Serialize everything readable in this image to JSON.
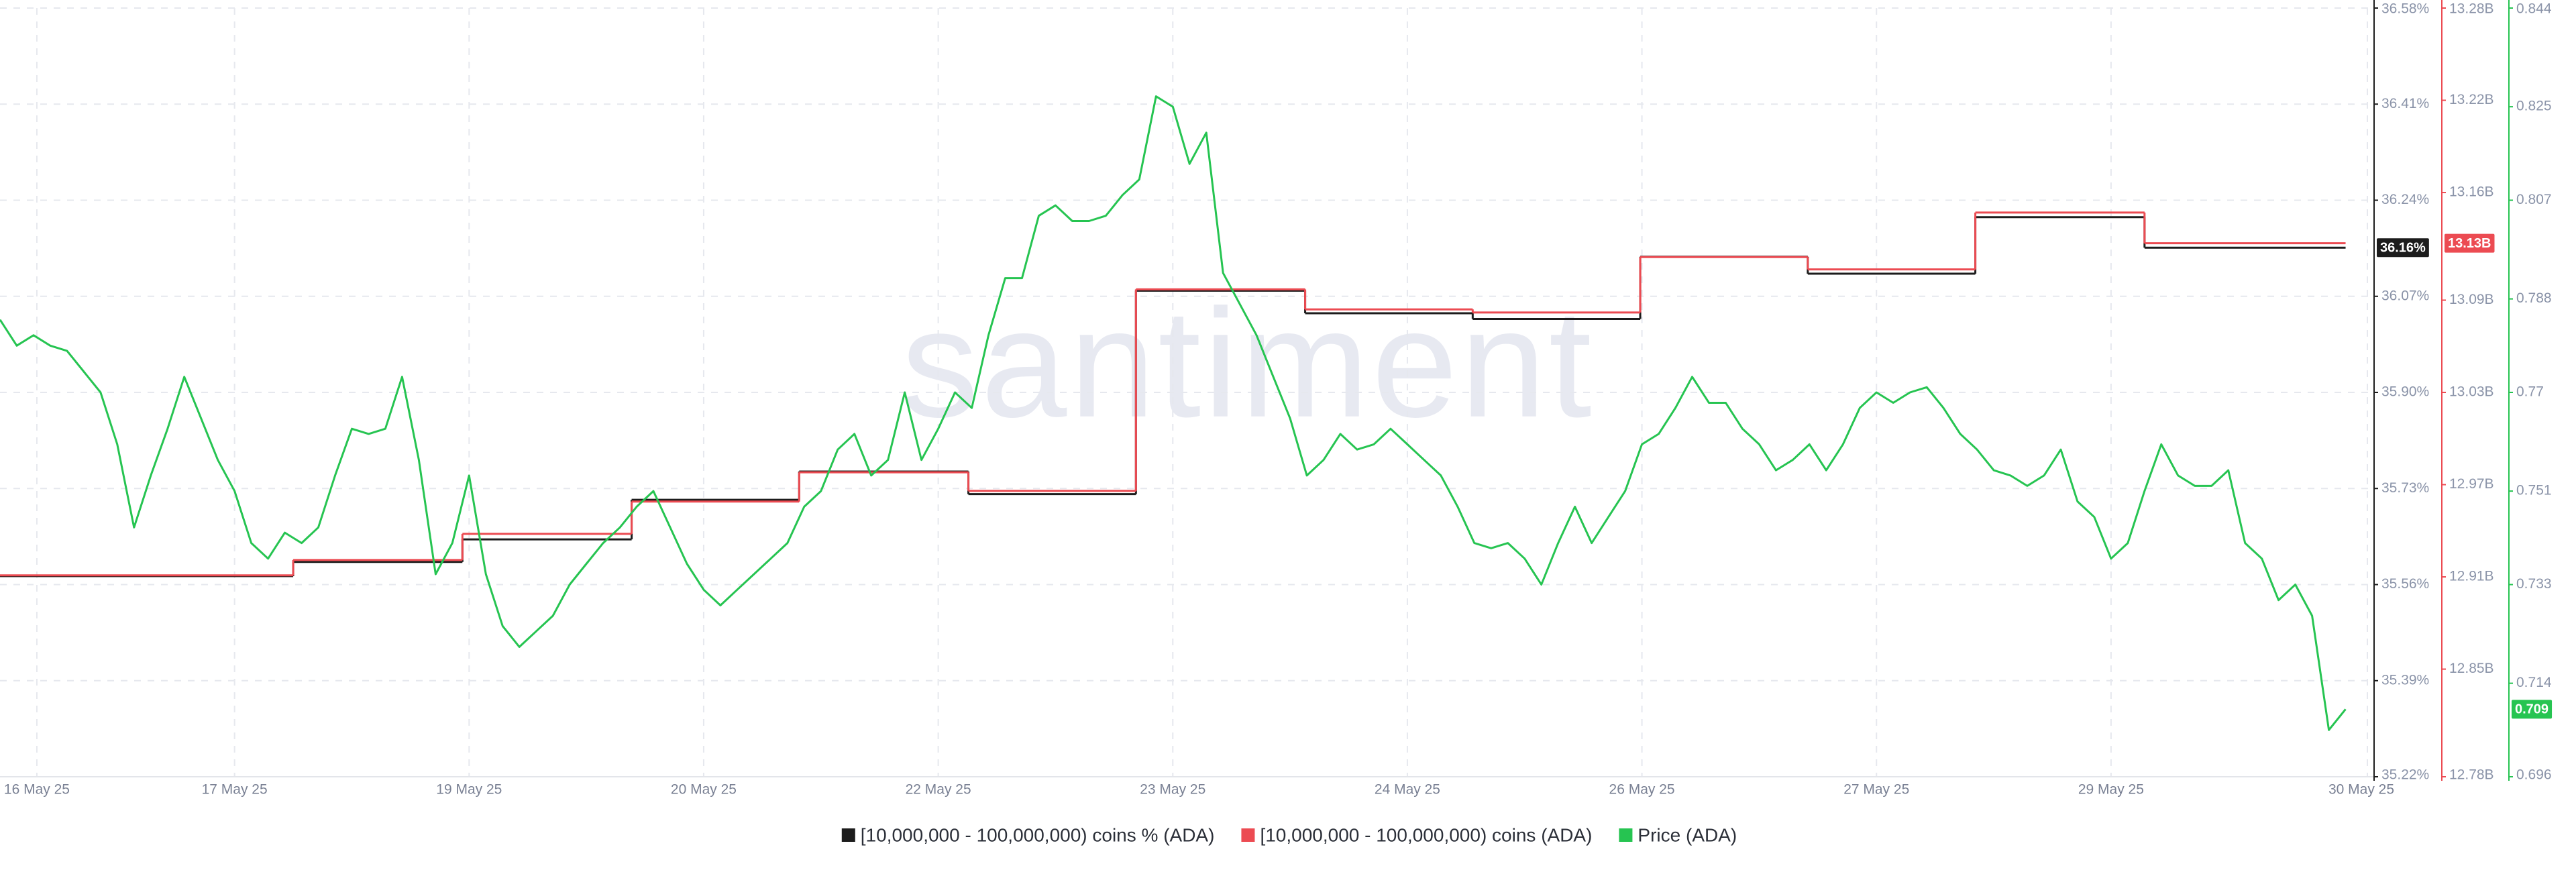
{
  "chart_data": {
    "type": "line",
    "watermark": "santiment",
    "xlim": [
      0,
      141.7
    ],
    "xticks": [
      {
        "value": 2.2,
        "label": "16 May 25"
      },
      {
        "value": 14,
        "label": "17 May 25"
      },
      {
        "value": 28,
        "label": "19 May 25"
      },
      {
        "value": 42,
        "label": "20 May 25"
      },
      {
        "value": 56,
        "label": "22 May 25"
      },
      {
        "value": 70,
        "label": "23 May 25"
      },
      {
        "value": 84,
        "label": "24 May 25"
      },
      {
        "value": 98,
        "label": "26 May 25"
      },
      {
        "value": 112,
        "label": "27 May 25"
      },
      {
        "value": 126,
        "label": "29 May 25"
      },
      {
        "value": 141.3,
        "label": "30 May 25"
      }
    ],
    "ylim": [
      35.22,
      36.58
    ],
    "yticks": [
      {
        "value": 35.22,
        "label": "35.22%"
      },
      {
        "value": 35.39,
        "label": "35.39%"
      },
      {
        "value": 35.56,
        "label": "35.56%"
      },
      {
        "value": 35.73,
        "label": "35.73%"
      },
      {
        "value": 35.9,
        "label": "35.90%"
      },
      {
        "value": 36.07,
        "label": "36.07%"
      },
      {
        "value": 36.24,
        "label": "36.24%"
      },
      {
        "value": 36.41,
        "label": "36.41%"
      },
      {
        "value": 36.58,
        "label": "36.58%"
      }
    ],
    "y2lim": [
      12.78,
      13.28
    ],
    "y2ticks": [
      {
        "value": 12.78,
        "label": "12.78B"
      },
      {
        "value": 12.85,
        "label": "12.85B"
      },
      {
        "value": 12.91,
        "label": "12.91B"
      },
      {
        "value": 12.97,
        "label": "12.97B"
      },
      {
        "value": 13.03,
        "label": "13.03B"
      },
      {
        "value": 13.09,
        "label": "13.09B"
      },
      {
        "value": 13.16,
        "label": "13.16B"
      },
      {
        "value": 13.22,
        "label": "13.22B"
      },
      {
        "value": 13.28,
        "label": "13.28B"
      }
    ],
    "y3lim": [
      0.696,
      0.844
    ],
    "y3ticks": [
      0.696,
      0.714,
      0.733,
      0.751,
      0.77,
      0.788,
      0.807,
      0.825,
      0.844
    ],
    "grid": true,
    "legend": "bottom",
    "series": [
      {
        "name": "[10,000,000 - 100,000,000) coins % (ADA)",
        "color": "#1c1c1c",
        "axis": "y",
        "step": true,
        "x": [
          0,
          17.5,
          27.6,
          37.7,
          47.7,
          57.8,
          67.8,
          77.9,
          87.9,
          97.9,
          107.9,
          117.9,
          128
        ],
        "values": [
          35.575,
          35.6,
          35.64,
          35.71,
          35.76,
          35.72,
          36.08,
          36.04,
          36.03,
          36.14,
          36.11,
          36.21,
          36.156
        ],
        "current_label": "36.16%"
      },
      {
        "name": "[10,000,000 - 100,000,000) coins (ADA)",
        "color": "#ec4b52",
        "axis": "y2",
        "step": true,
        "x": [
          0,
          17.5,
          27.6,
          37.7,
          47.7,
          57.8,
          67.8,
          77.9,
          87.9,
          97.9,
          107.9,
          117.9,
          128
        ],
        "values": [
          12.911,
          12.921,
          12.938,
          12.959,
          12.978,
          12.966,
          13.097,
          13.084,
          13.082,
          13.118,
          13.11,
          13.147,
          13.127
        ],
        "current_label": "13.13B"
      },
      {
        "name": "Price (ADA)",
        "color": "#26c451",
        "axis": "y3",
        "values": [
          0.784,
          0.779,
          0.781,
          0.779,
          0.778,
          0.774,
          0.77,
          0.76,
          0.744,
          0.754,
          0.763,
          0.773,
          0.765,
          0.757,
          0.751,
          0.741,
          0.738,
          0.743,
          0.741,
          0.744,
          0.754,
          0.763,
          0.762,
          0.763,
          0.773,
          0.757,
          0.735,
          0.741,
          0.754,
          0.735,
          0.725,
          0.721,
          0.724,
          0.727,
          0.733,
          0.737,
          0.741,
          0.744,
          0.748,
          0.751,
          0.744,
          0.737,
          0.732,
          0.729,
          0.732,
          0.735,
          0.738,
          0.741,
          0.748,
          0.751,
          0.759,
          0.762,
          0.754,
          0.757,
          0.77,
          0.757,
          0.763,
          0.77,
          0.767,
          0.781,
          0.792,
          0.792,
          0.804,
          0.806,
          0.803,
          0.803,
          0.804,
          0.808,
          0.811,
          0.827,
          0.825,
          0.814,
          0.82,
          0.793,
          0.787,
          0.781,
          0.773,
          0.765,
          0.754,
          0.757,
          0.762,
          0.759,
          0.76,
          0.763,
          0.76,
          0.757,
          0.754,
          0.748,
          0.741,
          0.74,
          0.741,
          0.738,
          0.733,
          0.741,
          0.748,
          0.741,
          0.746,
          0.751,
          0.76,
          0.762,
          0.767,
          0.773,
          0.768,
          0.768,
          0.763,
          0.76,
          0.755,
          0.757,
          0.76,
          0.755,
          0.76,
          0.767,
          0.77,
          0.768,
          0.77,
          0.771,
          0.767,
          0.762,
          0.759,
          0.755,
          0.754,
          0.752,
          0.754,
          0.759,
          0.749,
          0.746,
          0.738,
          0.741,
          0.751,
          0.76,
          0.754,
          0.752,
          0.752,
          0.755,
          0.741,
          0.738,
          0.73,
          0.733,
          0.727,
          0.705,
          0.709
        ],
        "current_label": "0.709"
      }
    ]
  }
}
